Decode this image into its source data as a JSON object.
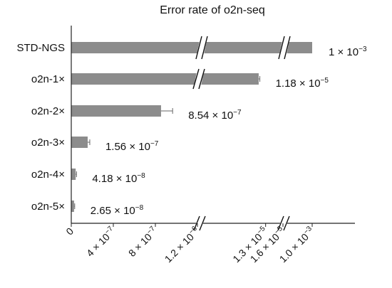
{
  "chart_data": {
    "type": "bar",
    "orientation": "horizontal",
    "title": "Error rate of o2n-seq",
    "categories": [
      "STD-NGS",
      "o2n-1×",
      "o2n-2×",
      "o2n-3×",
      "o2n-4×",
      "o2n-5×"
    ],
    "values": [
      0.001,
      1.18e-05,
      8.54e-07,
      1.56e-07,
      4.18e-08,
      2.65e-08
    ],
    "value_labels": [
      {
        "mantissa": "1",
        "exponent": "−3"
      },
      {
        "mantissa": "1.18",
        "exponent": "−5"
      },
      {
        "mantissa": "8.54",
        "exponent": "−7"
      },
      {
        "mantissa": "1.56",
        "exponent": "−7"
      },
      {
        "mantissa": "4.18",
        "exponent": "−8"
      },
      {
        "mantissa": "2.65",
        "exponent": "−8"
      }
    ],
    "error_bars": [
      0,
      2e-07,
      1.1e-07,
      2e-08,
      8e-09,
      6e-09
    ],
    "x_axis": {
      "scale": "broken",
      "segments": [
        {
          "from": 0,
          "to": 1.2e-06
        },
        {
          "from": 1.2e-06,
          "to": 1.6e-05
        },
        {
          "from": 1.6e-05,
          "to": 0.001
        }
      ],
      "ticks": [
        {
          "value": 0,
          "mantissa": "0",
          "exponent": ""
        },
        {
          "value": 4e-07,
          "mantissa": "4 × 10",
          "exponent": "−7"
        },
        {
          "value": 8e-07,
          "mantissa": "8 × 10",
          "exponent": "−7"
        },
        {
          "value": 1.2e-06,
          "mantissa": "1.2 × 10",
          "exponent": "−6"
        },
        {
          "value": 1.3e-05,
          "mantissa": "1.3 × 10",
          "exponent": "−5"
        },
        {
          "value": 1.6e-05,
          "mantissa": "1.6 × 10",
          "exponent": "−5"
        },
        {
          "value": 0.001,
          "mantissa": "1.0 × 10",
          "exponent": "−3"
        }
      ]
    },
    "grid": false,
    "legend": "none",
    "bar_color": "#8c8c8c",
    "axis_color": "#222222"
  }
}
